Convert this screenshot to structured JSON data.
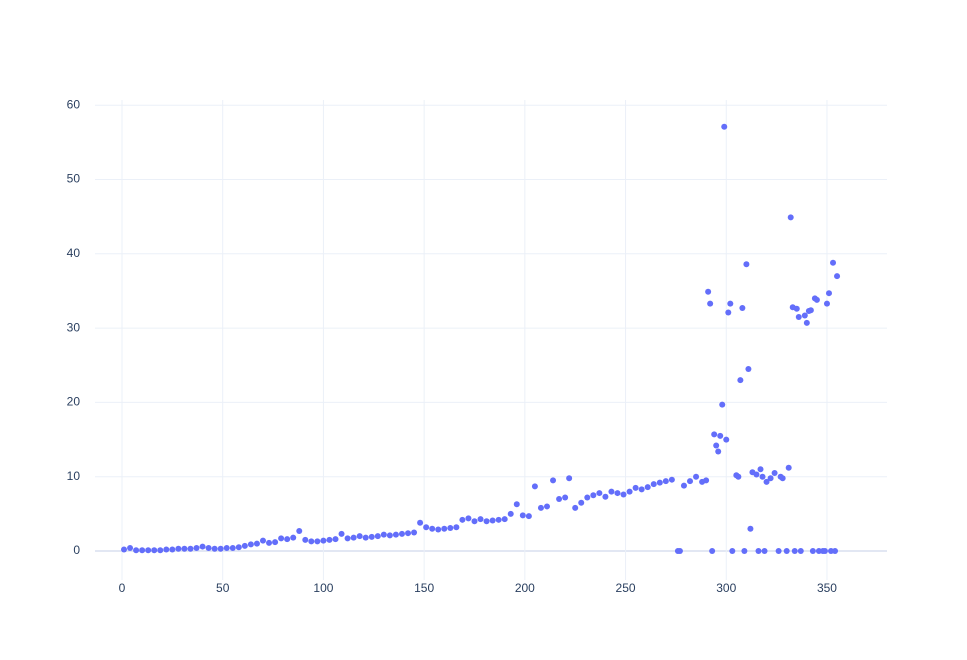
{
  "chart_data": {
    "type": "scatter",
    "color": "#636efa",
    "x": [
      1,
      4,
      7,
      10,
      13,
      16,
      19,
      22,
      25,
      28,
      31,
      34,
      37,
      40,
      43,
      46,
      49,
      52,
      55,
      58,
      61,
      64,
      67,
      70,
      73,
      76,
      79,
      82,
      85,
      88,
      91,
      94,
      97,
      100,
      103,
      106,
      109,
      112,
      115,
      118,
      121,
      124,
      127,
      130,
      133,
      136,
      139,
      142,
      145,
      148,
      151,
      154,
      157,
      160,
      163,
      166,
      169,
      172,
      175,
      178,
      181,
      184,
      187,
      190,
      193,
      196,
      199,
      202,
      205,
      208,
      211,
      214,
      217,
      220,
      222,
      225,
      228,
      231,
      234,
      237,
      240,
      243,
      246,
      249,
      252,
      255,
      258,
      261,
      264,
      267,
      270,
      273,
      276,
      277,
      279,
      282,
      285,
      288,
      290,
      291,
      292,
      293,
      294,
      295,
      296,
      297,
      298,
      299,
      300,
      301,
      302,
      303,
      305,
      306,
      307,
      308,
      309,
      310,
      311,
      312,
      313,
      315,
      316,
      317,
      318,
      319,
      320,
      322,
      324,
      326,
      327,
      328,
      330,
      331,
      332,
      333,
      334,
      335,
      336,
      337,
      339,
      340,
      341,
      342,
      343,
      344,
      345,
      346,
      348,
      349,
      350,
      351,
      352,
      353,
      354,
      355
    ],
    "values": [
      0.2,
      0.4,
      0.1,
      0.1,
      0.1,
      0.1,
      0.1,
      0.2,
      0.2,
      0.3,
      0.3,
      0.3,
      0.4,
      0.6,
      0.4,
      0.3,
      0.3,
      0.4,
      0.4,
      0.5,
      0.7,
      0.9,
      1.0,
      1.4,
      1.1,
      1.2,
      1.7,
      1.6,
      1.8,
      2.7,
      1.5,
      1.3,
      1.3,
      1.4,
      1.5,
      1.6,
      2.3,
      1.7,
      1.8,
      2.0,
      1.8,
      1.9,
      2.0,
      2.2,
      2.1,
      2.2,
      2.3,
      2.4,
      2.5,
      3.8,
      3.2,
      3.0,
      2.9,
      3.0,
      3.1,
      3.2,
      4.2,
      4.4,
      4.0,
      4.3,
      4.0,
      4.1,
      4.2,
      4.3,
      5.0,
      6.3,
      4.8,
      4.7,
      8.7,
      5.8,
      6.0,
      9.5,
      7.0,
      7.2,
      9.8,
      5.8,
      6.5,
      7.2,
      7.5,
      7.8,
      7.3,
      8.0,
      7.8,
      7.6,
      8.0,
      8.5,
      8.3,
      8.6,
      9.0,
      9.2,
      9.4,
      9.6,
      0,
      0,
      8.8,
      9.4,
      10.0,
      9.3,
      9.5,
      34.9,
      33.3,
      0,
      15.7,
      14.2,
      13.4,
      15.5,
      19.7,
      57.1,
      15.0,
      32.1,
      33.3,
      0,
      10.2,
      10.0,
      23.0,
      32.7,
      0,
      38.6,
      24.5,
      3.0,
      10.6,
      10.3,
      0,
      11.0,
      10.0,
      0,
      9.3,
      9.8,
      10.5,
      0,
      10.0,
      9.8,
      0,
      11.2,
      44.9,
      32.8,
      0,
      32.6,
      31.5,
      0,
      31.7,
      30.7,
      32.3,
      32.4,
      0,
      34.0,
      33.8,
      0,
      0,
      0,
      33.3,
      34.7,
      0,
      38.8,
      0,
      37.0
    ],
    "xlim": [
      -13.4,
      379.8
    ],
    "ylim": [
      -3.9,
      60.7
    ],
    "xticks": [
      0,
      50,
      100,
      150,
      200,
      250,
      300,
      350
    ],
    "yticks": [
      0,
      10,
      20,
      30,
      40,
      50,
      60
    ],
    "grid": true
  }
}
